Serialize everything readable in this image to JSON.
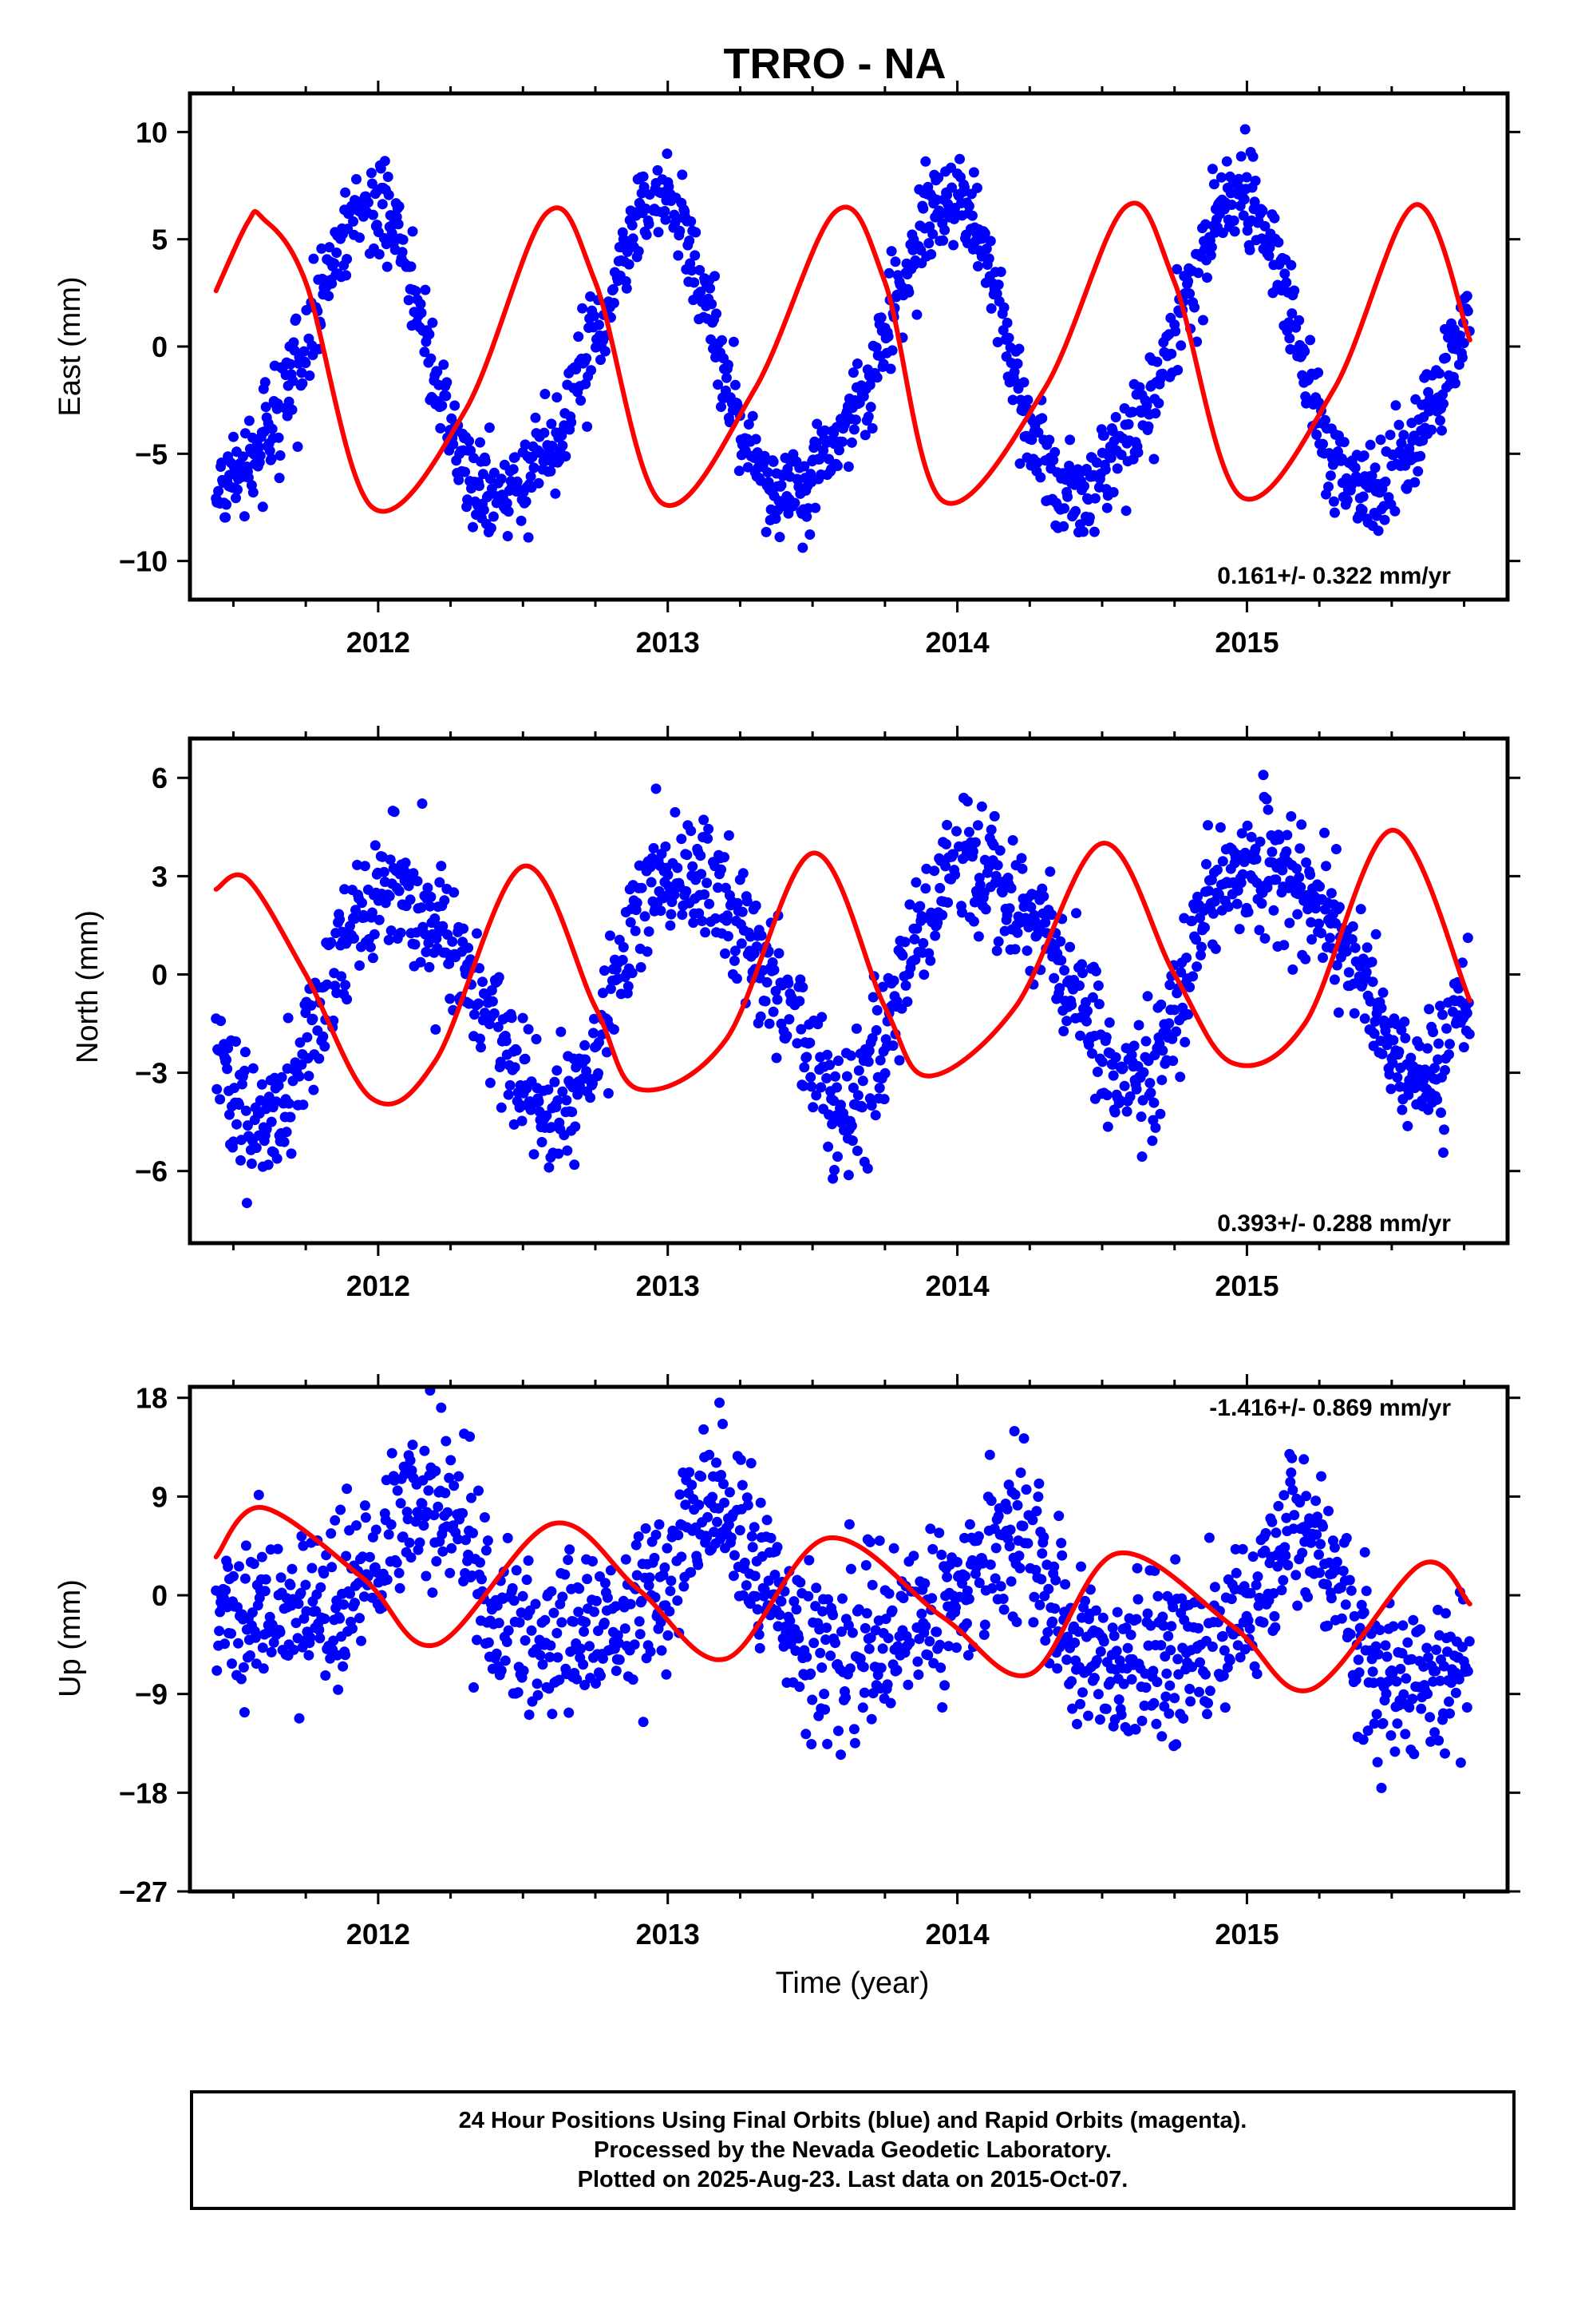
{
  "figure": {
    "title": "TRRO - NA",
    "time_label": "Time (year)"
  },
  "footer": {
    "lines": [
      "24 Hour Positions Using Final Orbits (blue) and Rapid Orbits (magenta).",
      "Processed by the Nevada Geodetic Laboratory.",
      "Plotted on 2025-Aug-23. Last data on 2015-Oct-07."
    ]
  },
  "colors": {
    "points": "#0000ff",
    "fit": "#ff0000",
    "frame": "#000000"
  },
  "chart_data": [
    {
      "type": "scatter",
      "panel": "east",
      "ylabel": "East (mm)",
      "xlabel": "",
      "xlim": [
        2011.35,
        2015.9
      ],
      "ylim": [
        -11.8,
        11.8
      ],
      "x_ticks": [
        2012,
        2013,
        2014,
        2015
      ],
      "y_ticks": [
        10,
        5,
        0,
        -5,
        -10
      ],
      "y_tick_labels": [
        "10",
        "5",
        "0",
        "−5",
        "−10"
      ],
      "rate_text": "0.161+/- 0.322 mm/yr",
      "rate_position": "bottom-right",
      "data_span": [
        2011.44,
        2015.77
      ],
      "series": [
        {
          "kind": "points",
          "model": {
            "offset": -0.6,
            "trend": 0.161,
            "trend_ref": 2013.6,
            "cos1": 6.4,
            "sin1": -2.1,
            "cos2": 1.0,
            "sin2": 0.2,
            "scatter": 1.1
          }
        },
        {
          "kind": "fit",
          "x": [
            2011.44,
            2011.55,
            2011.6,
            2011.75,
            2011.98,
            2012.3,
            2012.58,
            2012.75,
            2012.98,
            2013.3,
            2013.58,
            2013.75,
            2013.95,
            2014.3,
            2014.58,
            2014.75,
            2014.98,
            2015.3,
            2015.58,
            2015.77
          ],
          "y": [
            2.6,
            5.8,
            6.0,
            3.0,
            -7.5,
            -3.0,
            6.2,
            3.0,
            -7.3,
            -2.0,
            6.3,
            3.0,
            -7.2,
            -2.0,
            6.5,
            3.0,
            -7.0,
            -2.0,
            6.6,
            0.3
          ]
        }
      ]
    },
    {
      "type": "scatter",
      "panel": "north",
      "ylabel": "North (mm)",
      "xlabel": "",
      "xlim": [
        2011.35,
        2015.9
      ],
      "ylim": [
        -8.2,
        7.2
      ],
      "x_ticks": [
        2012,
        2013,
        2014,
        2015
      ],
      "y_ticks": [
        6,
        3,
        0,
        -3,
        -6
      ],
      "y_tick_labels": [
        "6",
        "3",
        "0",
        "−3",
        "−6"
      ],
      "rate_text": "0.393+/- 0.288 mm/yr",
      "rate_position": "bottom-right",
      "data_span": [
        2011.44,
        2015.77
      ],
      "series": [
        {
          "kind": "points",
          "model": {
            "offset": 0.0,
            "trend": 0.393,
            "trend_ref": 2013.6,
            "cos1": 3.0,
            "sin1": 1.6,
            "cos2": 0.2,
            "sin2": -0.6,
            "scatter": 1.0
          }
        },
        {
          "kind": "fit",
          "x": [
            2011.44,
            2011.55,
            2011.75,
            2011.98,
            2012.2,
            2012.5,
            2012.75,
            2012.9,
            2013.2,
            2013.5,
            2013.75,
            2013.9,
            2014.2,
            2014.5,
            2014.75,
            2014.95,
            2015.2,
            2015.5,
            2015.77
          ],
          "y": [
            2.6,
            2.9,
            0.0,
            -3.8,
            -2.6,
            3.3,
            -1.0,
            -3.5,
            -2.0,
            3.7,
            -1.0,
            -3.1,
            -1.0,
            4.0,
            0.0,
            -2.7,
            -1.5,
            4.4,
            -0.8
          ]
        }
      ]
    },
    {
      "type": "scatter",
      "panel": "up",
      "ylabel": "Up (mm)",
      "xlabel": "Time (year)",
      "xlim": [
        2011.35,
        2015.9
      ],
      "ylim": [
        -27,
        19
      ],
      "x_ticks": [
        2012,
        2013,
        2014,
        2015
      ],
      "y_ticks": [
        18,
        9,
        0,
        -9,
        -18,
        -27
      ],
      "y_tick_labels": [
        "18",
        "9",
        "0",
        "−9",
        "−18",
        "−27"
      ],
      "rate_text": "-1.416+/- 0.869 mm/yr",
      "rate_position": "top-right",
      "data_span": [
        2011.44,
        2015.77
      ],
      "series": [
        {
          "kind": "points",
          "model": {
            "offset": -0.8,
            "trend": -1.416,
            "trend_ref": 2013.6,
            "cos1": 3.2,
            "sin1": 4.5,
            "cos2": -1.5,
            "sin2": 1.3,
            "scatter": 3.8
          }
        },
        {
          "kind": "fit",
          "x": [
            2011.44,
            2011.6,
            2011.95,
            2012.2,
            2012.6,
            2012.9,
            2013.2,
            2013.55,
            2013.95,
            2014.25,
            2014.55,
            2014.95,
            2015.22,
            2015.6,
            2015.77
          ],
          "y": [
            3.5,
            8.0,
            1.5,
            -4.5,
            6.5,
            0.5,
            -5.8,
            5.2,
            -2.0,
            -7.2,
            3.8,
            -2.8,
            -8.6,
            2.8,
            -0.8
          ]
        }
      ]
    }
  ]
}
